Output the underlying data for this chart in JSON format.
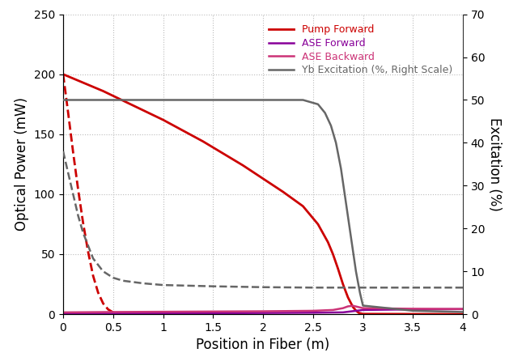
{
  "xlabel": "Position in Fiber (m)",
  "ylabel_left": "Optical Power (mW)",
  "ylabel_right": "Excitation (%)",
  "xlim": [
    0,
    4
  ],
  "ylim_left": [
    0,
    250
  ],
  "ylim_right": [
    0,
    70
  ],
  "xticks": [
    0,
    0.5,
    1.0,
    1.5,
    2.0,
    2.5,
    3.0,
    3.5,
    4.0
  ],
  "yticks_left": [
    0,
    50,
    100,
    150,
    200,
    250
  ],
  "yticks_right": [
    0,
    10,
    20,
    30,
    40,
    50,
    60,
    70
  ],
  "legend": [
    {
      "label": "Pump Forward",
      "color": "#cc0000",
      "linestyle": "solid",
      "linewidth": 2.0
    },
    {
      "label": "ASE Forward",
      "color": "#880099",
      "linestyle": "solid",
      "linewidth": 1.8
    },
    {
      "label": "ASE Backward",
      "color": "#cc3377",
      "linestyle": "solid",
      "linewidth": 1.8
    },
    {
      "label": "Yb Excitation (%, Right Scale)",
      "color": "#666666",
      "linestyle": "solid",
      "linewidth": 1.8
    }
  ],
  "pump_forward_solid": {
    "x": [
      0.0,
      0.2,
      0.4,
      0.6,
      0.8,
      1.0,
      1.2,
      1.4,
      1.6,
      1.8,
      2.0,
      2.2,
      2.4,
      2.55,
      2.65,
      2.7,
      2.75,
      2.8,
      2.85,
      2.9,
      2.93,
      2.96,
      3.0,
      3.5,
      4.0
    ],
    "y": [
      200,
      193,
      186,
      178,
      170,
      162,
      153,
      144,
      134,
      124,
      113,
      102,
      90,
      75,
      60,
      50,
      38,
      25,
      14,
      6,
      3,
      1,
      0.2,
      0.1,
      0.05
    ],
    "color": "#cc0000",
    "linestyle": "solid",
    "linewidth": 2.0
  },
  "pump_forward_dashed": {
    "x": [
      0.0,
      0.05,
      0.1,
      0.15,
      0.2,
      0.25,
      0.3,
      0.35,
      0.4,
      0.45,
      0.5,
      0.6,
      0.7,
      1.0
    ],
    "y": [
      200,
      168,
      135,
      104,
      76,
      52,
      32,
      18,
      9,
      4,
      1.5,
      0.3,
      0.1,
      0.02
    ],
    "color": "#cc0000",
    "linestyle": "dashed",
    "linewidth": 2.0
  },
  "ase_forward_solid": {
    "x": [
      0.0,
      0.5,
      1.0,
      1.5,
      2.0,
      2.5,
      2.8,
      2.9,
      3.0,
      3.5,
      4.0
    ],
    "y": [
      0.3,
      0.5,
      0.7,
      0.8,
      1.0,
      1.2,
      1.5,
      2.5,
      3.5,
      4.0,
      4.2
    ],
    "color": "#880099",
    "linestyle": "solid",
    "linewidth": 1.8
  },
  "ase_backward_solid": {
    "x": [
      0.0,
      0.5,
      1.0,
      1.5,
      2.0,
      2.5,
      2.7,
      2.8,
      2.85,
      2.9,
      2.95,
      3.0,
      3.5,
      4.0
    ],
    "y": [
      1.5,
      1.8,
      2.0,
      2.2,
      2.4,
      2.8,
      3.5,
      5.0,
      6.5,
      7.0,
      6.0,
      5.0,
      4.5,
      4.3
    ],
    "color": "#cc3377",
    "linestyle": "solid",
    "linewidth": 1.8
  },
  "yb_excitation_solid": {
    "x": [
      0.0,
      0.1,
      0.3,
      0.5,
      1.0,
      1.5,
      2.0,
      2.4,
      2.55,
      2.62,
      2.68,
      2.73,
      2.78,
      2.83,
      2.88,
      2.93,
      2.97,
      3.0,
      3.5,
      4.0
    ],
    "y": [
      50,
      50,
      50,
      50,
      50,
      50,
      50,
      50,
      49,
      47,
      44,
      40,
      34,
      26,
      18,
      10,
      5,
      2,
      0.8,
      0.5
    ],
    "color": "#666666",
    "linestyle": "solid",
    "linewidth": 1.8
  },
  "yb_excitation_dashed": {
    "x": [
      0.0,
      0.05,
      0.1,
      0.15,
      0.2,
      0.3,
      0.4,
      0.5,
      0.6,
      0.8,
      1.0,
      1.5,
      2.0,
      2.5,
      3.0,
      3.5,
      4.0
    ],
    "y": [
      38,
      33,
      28,
      23,
      19,
      13,
      10,
      8.5,
      7.8,
      7.2,
      6.8,
      6.5,
      6.3,
      6.2,
      6.2,
      6.2,
      6.2
    ],
    "color": "#666666",
    "linestyle": "dashed",
    "linewidth": 1.8
  },
  "background_color": "#ffffff",
  "grid_color": "#bbbbbb",
  "figsize": [
    6.5,
    4.41
  ],
  "dpi": 100
}
